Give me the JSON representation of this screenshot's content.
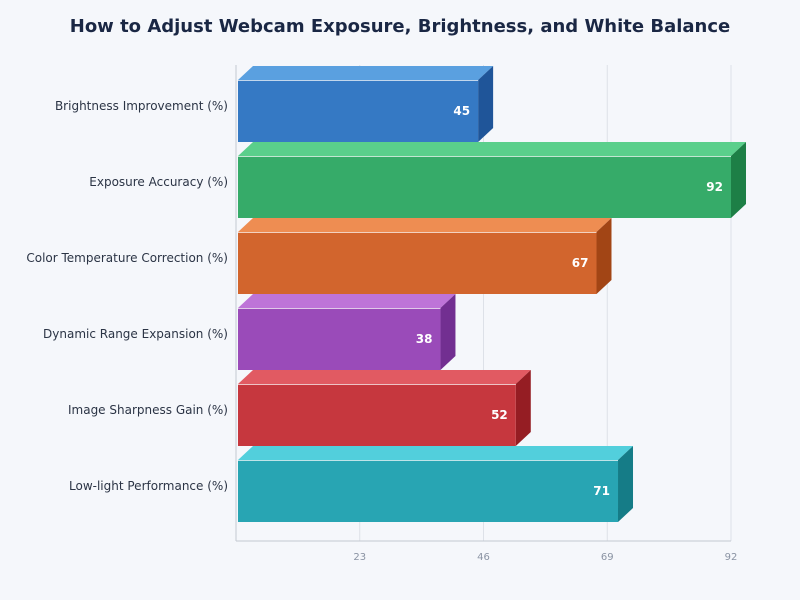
{
  "chart_data": {
    "type": "bar",
    "orientation": "horizontal",
    "style": "3d",
    "title": "How to Adjust Webcam Exposure, Brightness, and White Balance",
    "categories": [
      "Brightness Improvement (%)",
      "Exposure Accuracy (%)",
      "Color Temperature Correction (%)",
      "Dynamic Range Expansion (%)",
      "Image Sharpness Gain (%)",
      "Low-light Performance (%)"
    ],
    "values": [
      45,
      92,
      67,
      38,
      52,
      71
    ],
    "colors": [
      {
        "front": "#3579c4",
        "top": "#5aa0e0",
        "side": "#1f5599"
      },
      {
        "front": "#36ab69",
        "top": "#5acf8b",
        "side": "#1d7f46"
      },
      {
        "front": "#d2652d",
        "top": "#ee8d52",
        "side": "#a24515"
      },
      {
        "front": "#9a4bb9",
        "top": "#be74d8",
        "side": "#722f91"
      },
      {
        "front": "#c6373e",
        "top": "#e15a62",
        "side": "#951d23"
      },
      {
        "front": "#28a5b3",
        "top": "#52cfdc",
        "side": "#157c87"
      }
    ],
    "xticks": [
      23,
      46,
      69,
      92
    ],
    "xlim": [
      0,
      92
    ],
    "grid": true
  }
}
